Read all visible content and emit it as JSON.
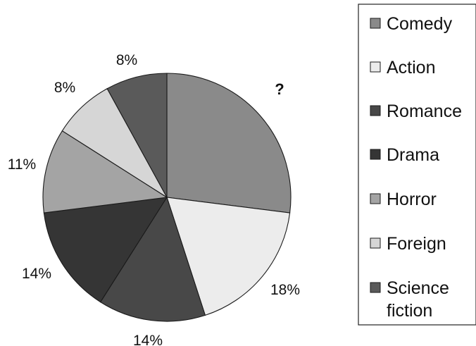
{
  "chart_data": {
    "type": "pie",
    "slices": [
      {
        "label": "Comedy",
        "value": 27,
        "display": "?",
        "color": "#8a8a8a"
      },
      {
        "label": "Action",
        "value": 18,
        "display": "18%",
        "color": "#ececec"
      },
      {
        "label": "Romance",
        "value": 14,
        "display": "14%",
        "color": "#484848"
      },
      {
        "label": "Drama",
        "value": 14,
        "display": "14%",
        "color": "#353535"
      },
      {
        "label": "Horror",
        "value": 11,
        "display": "11%",
        "color": "#a4a4a4"
      },
      {
        "label": "Foreign",
        "value": 8,
        "display": "8%",
        "color": "#d6d6d6"
      },
      {
        "label": "Science fiction",
        "value": 8,
        "display": "8%",
        "color": "#5a5a5a"
      }
    ],
    "legend": {
      "position": "right",
      "entries": [
        {
          "lines": [
            "Comedy"
          ]
        },
        {
          "lines": [
            "Action"
          ]
        },
        {
          "lines": [
            "Romance"
          ]
        },
        {
          "lines": [
            "Drama"
          ]
        },
        {
          "lines": [
            "Horror"
          ]
        },
        {
          "lines": [
            "Foreign"
          ]
        },
        {
          "lines": [
            "Science",
            "fiction"
          ]
        }
      ]
    }
  }
}
